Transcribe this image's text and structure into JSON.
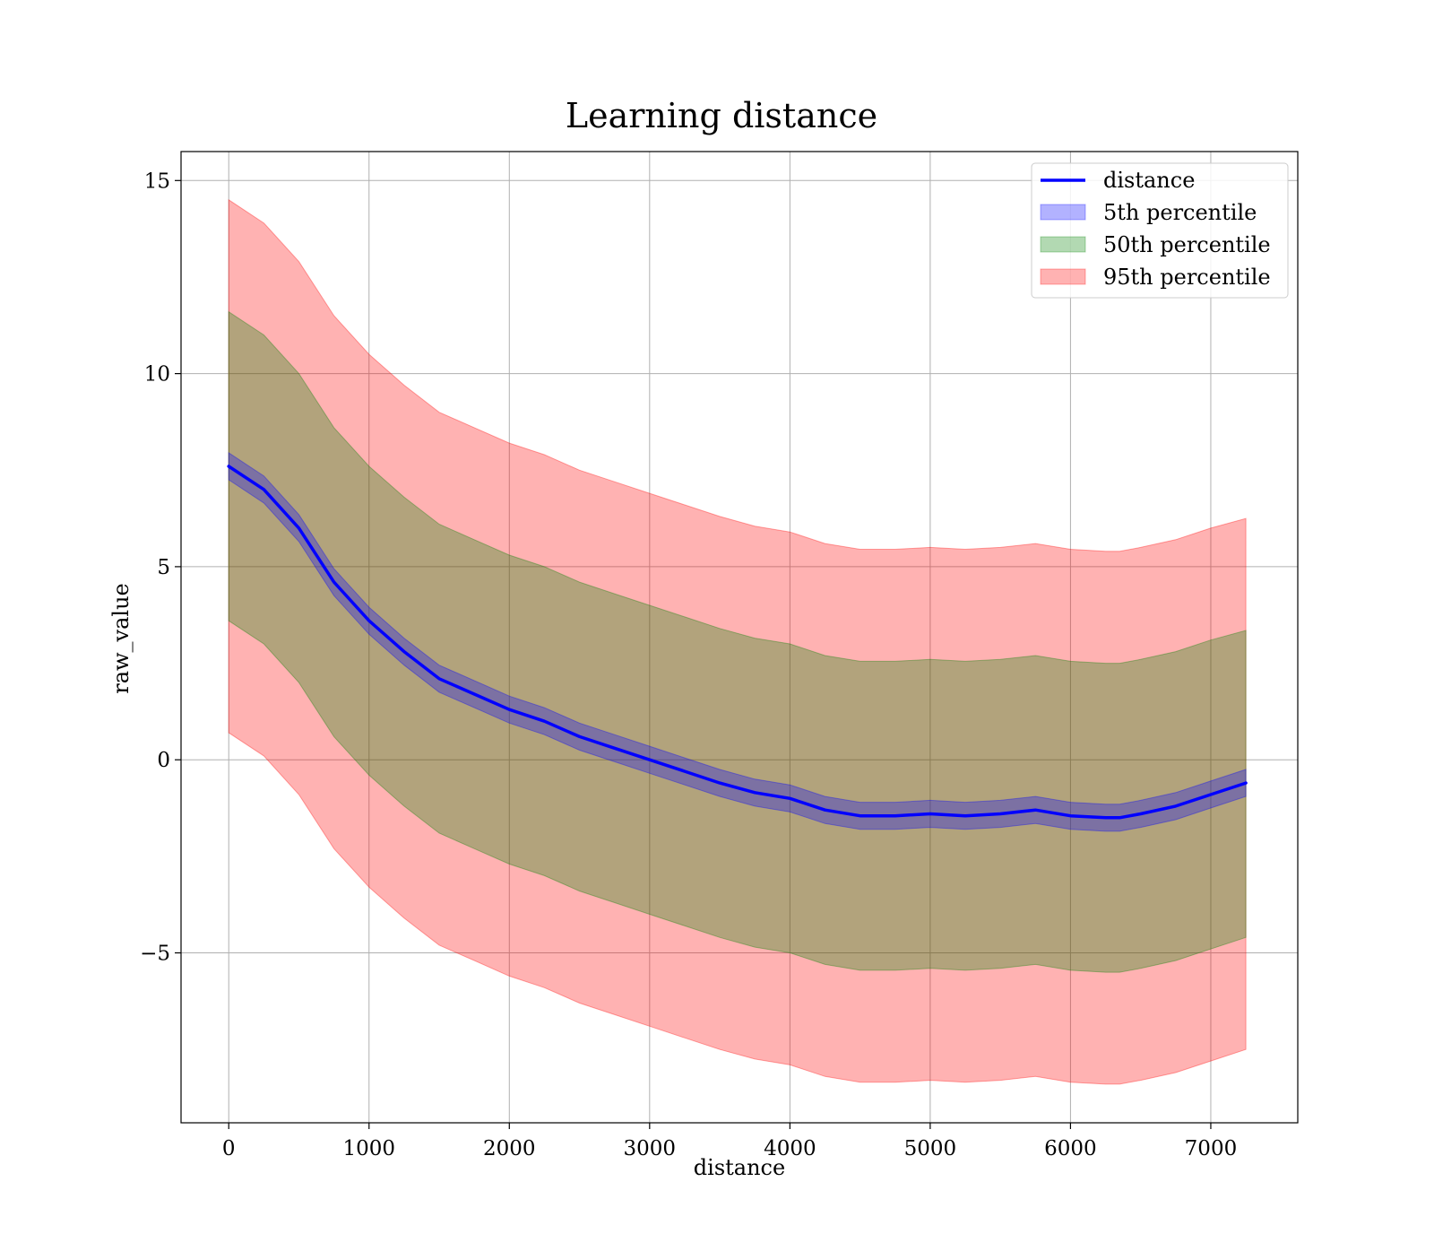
{
  "chart_data": {
    "type": "line",
    "title": "Learning distance",
    "xlabel": "distance",
    "ylabel": "raw_value",
    "xlim": [
      -340,
      7620
    ],
    "ylim": [
      -9.4,
      15.75
    ],
    "xticks": [
      0,
      1000,
      2000,
      3000,
      4000,
      5000,
      6000,
      7000
    ],
    "xtick_labels": [
      "0",
      "1000",
      "2000",
      "3000",
      "4000",
      "5000",
      "6000",
      "7000"
    ],
    "yticks": [
      -5,
      0,
      5,
      10,
      15
    ],
    "ytick_labels": [
      "−5",
      "0",
      "5",
      "10",
      "15"
    ],
    "grid": true,
    "legend_position": "upper right",
    "x": [
      0,
      250,
      500,
      750,
      1000,
      1250,
      1500,
      1750,
      2000,
      2250,
      2500,
      2750,
      3000,
      3250,
      3500,
      3750,
      4000,
      4250,
      4500,
      4750,
      5000,
      5250,
      5500,
      5750,
      6000,
      6250,
      6350,
      6500,
      6750,
      7000,
      7250
    ],
    "series": [
      {
        "name": "distance",
        "kind": "line",
        "color": "#0000ff",
        "values": [
          7.6,
          7.0,
          6.0,
          4.6,
          3.6,
          2.8,
          2.1,
          1.7,
          1.3,
          1.0,
          0.6,
          0.3,
          0.0,
          -0.3,
          -0.6,
          -0.85,
          -1.0,
          -1.3,
          -1.45,
          -1.45,
          -1.4,
          -1.45,
          -1.4,
          -1.3,
          -1.45,
          -1.5,
          -1.5,
          -1.4,
          -1.2,
          -0.9,
          -0.6
        ]
      },
      {
        "name": "5th percentile",
        "kind": "band",
        "color": "#0000ff",
        "upper": [
          7.95,
          7.35,
          6.35,
          4.95,
          3.95,
          3.15,
          2.45,
          2.05,
          1.65,
          1.35,
          0.95,
          0.65,
          0.35,
          0.05,
          -0.25,
          -0.5,
          -0.65,
          -0.95,
          -1.1,
          -1.1,
          -1.05,
          -1.1,
          -1.05,
          -0.95,
          -1.1,
          -1.15,
          -1.15,
          -1.05,
          -0.85,
          -0.55,
          -0.25
        ],
        "lower": [
          7.25,
          6.65,
          5.65,
          4.25,
          3.25,
          2.45,
          1.75,
          1.35,
          0.95,
          0.65,
          0.25,
          -0.05,
          -0.35,
          -0.65,
          -0.95,
          -1.2,
          -1.35,
          -1.65,
          -1.8,
          -1.8,
          -1.75,
          -1.8,
          -1.75,
          -1.65,
          -1.8,
          -1.85,
          -1.85,
          -1.75,
          -1.55,
          -1.25,
          -0.95
        ]
      },
      {
        "name": "50th percentile",
        "kind": "band",
        "color": "#008000",
        "upper": [
          11.6,
          11.0,
          10.0,
          8.6,
          7.6,
          6.8,
          6.1,
          5.7,
          5.3,
          5.0,
          4.6,
          4.3,
          4.0,
          3.7,
          3.4,
          3.15,
          3.0,
          2.7,
          2.55,
          2.55,
          2.6,
          2.55,
          2.6,
          2.7,
          2.55,
          2.5,
          2.5,
          2.6,
          2.8,
          3.1,
          3.35
        ],
        "lower": [
          3.6,
          3.0,
          2.0,
          0.6,
          -0.4,
          -1.2,
          -1.9,
          -2.3,
          -2.7,
          -3.0,
          -3.4,
          -3.7,
          -4.0,
          -4.3,
          -4.6,
          -4.85,
          -5.0,
          -5.3,
          -5.45,
          -5.45,
          -5.4,
          -5.45,
          -5.4,
          -5.3,
          -5.45,
          -5.5,
          -5.5,
          -5.4,
          -5.2,
          -4.9,
          -4.6
        ]
      },
      {
        "name": "95th percentile",
        "kind": "band",
        "color": "#ff0000",
        "upper": [
          14.5,
          13.9,
          12.9,
          11.5,
          10.5,
          9.7,
          9.0,
          8.6,
          8.2,
          7.9,
          7.5,
          7.2,
          6.9,
          6.6,
          6.3,
          6.05,
          5.9,
          5.6,
          5.45,
          5.45,
          5.5,
          5.45,
          5.5,
          5.6,
          5.45,
          5.4,
          5.4,
          5.5,
          5.7,
          6.0,
          6.25
        ],
        "lower": [
          0.7,
          0.1,
          -0.9,
          -2.3,
          -3.3,
          -4.1,
          -4.8,
          -5.2,
          -5.6,
          -5.9,
          -6.3,
          -6.6,
          -6.9,
          -7.2,
          -7.5,
          -7.75,
          -7.9,
          -8.2,
          -8.35,
          -8.35,
          -8.3,
          -8.35,
          -8.3,
          -8.2,
          -8.35,
          -8.4,
          -8.4,
          -8.3,
          -8.1,
          -7.8,
          -7.5
        ]
      }
    ]
  }
}
